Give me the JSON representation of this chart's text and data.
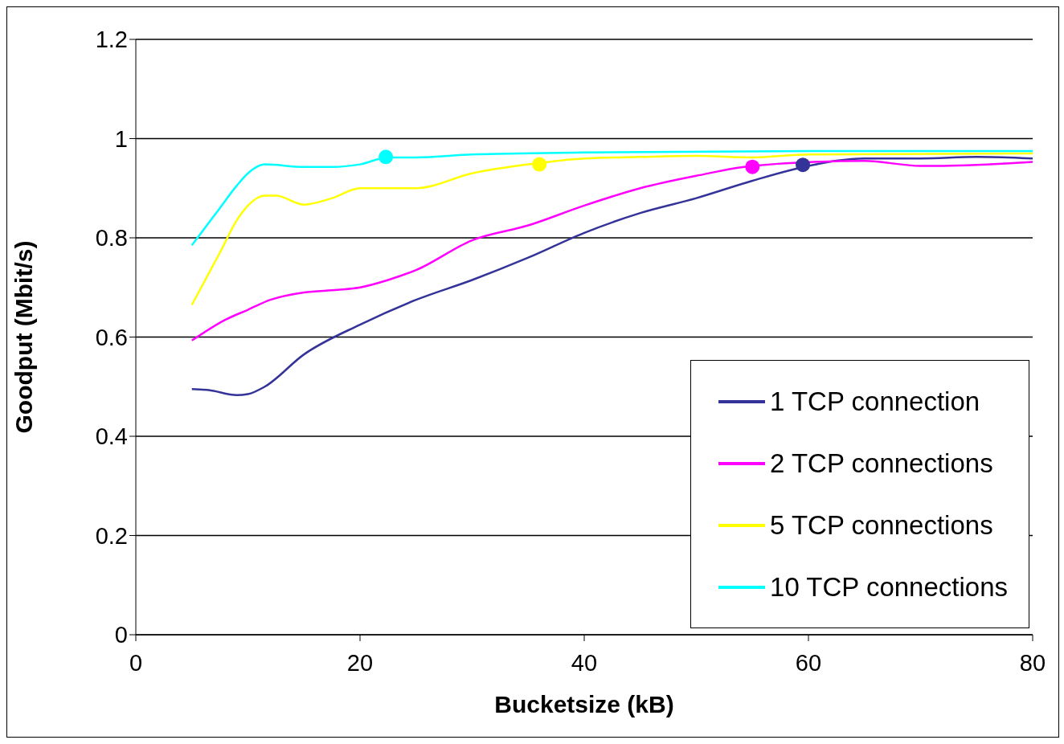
{
  "chart_data": {
    "type": "line",
    "xlabel": "Bucketsize (kB)",
    "ylabel": "Goodput (Mbit/s)",
    "xlim": [
      0,
      80
    ],
    "xticks": [
      0,
      20,
      40,
      60,
      80
    ],
    "ylim": [
      0,
      1.2
    ],
    "yticks": [
      0,
      0.2,
      0.4,
      0.6,
      0.8,
      1,
      1.2
    ],
    "grid": "y",
    "legend": "bottom right",
    "marker": "none",
    "line_style": "solid",
    "series": [
      {
        "name": "1 TCP connection",
        "color": "#333399",
        "x": [
          5,
          6.5,
          9,
          10,
          11.5,
          15,
          20,
          25,
          30,
          35,
          40,
          45,
          50,
          55,
          60,
          65,
          70,
          75,
          80
        ],
        "values": [
          0.495,
          0.493,
          0.483,
          0.485,
          0.5,
          0.565,
          0.625,
          0.675,
          0.715,
          0.76,
          0.81,
          0.85,
          0.88,
          0.915,
          0.945,
          0.96,
          0.96,
          0.963,
          0.96
        ]
      },
      {
        "name": "2 TCP connections",
        "color": "#ff00ff",
        "x": [
          5,
          8,
          10,
          12,
          15,
          18,
          20,
          22.5,
          25,
          30,
          35,
          40,
          45,
          50,
          55,
          65,
          70,
          72,
          80
        ],
        "values": [
          0.593,
          0.635,
          0.655,
          0.675,
          0.69,
          0.695,
          0.7,
          0.715,
          0.735,
          0.795,
          0.825,
          0.865,
          0.9,
          0.925,
          0.945,
          0.955,
          0.945,
          0.945,
          0.953
        ]
      },
      {
        "name": "5 TCP connections",
        "color": "#ffff00",
        "x": [
          5,
          7.5,
          9,
          10,
          11.5,
          12.5,
          15,
          17.5,
          20,
          25,
          30,
          35,
          40,
          45,
          50,
          55,
          60,
          80
        ],
        "values": [
          0.665,
          0.77,
          0.835,
          0.865,
          0.885,
          0.885,
          0.867,
          0.88,
          0.9,
          0.9,
          0.93,
          0.948,
          0.96,
          0.963,
          0.965,
          0.962,
          0.968,
          0.97
        ]
      },
      {
        "name": "10 TCP connections",
        "color": "#00ffff",
        "x": [
          5,
          7.5,
          9,
          10,
          11.5,
          15,
          17.5,
          20,
          22.5,
          25,
          30,
          40,
          60,
          80
        ],
        "values": [
          0.785,
          0.86,
          0.905,
          0.93,
          0.948,
          0.943,
          0.943,
          0.948,
          0.962,
          0.962,
          0.968,
          0.972,
          0.975,
          0.975
        ]
      },
      {
        "type": "scatter",
        "marker": "circle",
        "color": "#00ffff",
        "x": [
          22.3
        ],
        "values": [
          0.963
        ]
      },
      {
        "type": "scatter",
        "marker": "circle",
        "color": "#ffff00",
        "x": [
          36
        ],
        "values": [
          0.948
        ]
      },
      {
        "type": "scatter",
        "marker": "circle",
        "color": "#ff00ff",
        "x": [
          55
        ],
        "values": [
          0.943
        ]
      },
      {
        "type": "scatter",
        "marker": "circle",
        "color": "#333399",
        "x": [
          59.5
        ],
        "values": [
          0.947
        ]
      }
    ]
  }
}
